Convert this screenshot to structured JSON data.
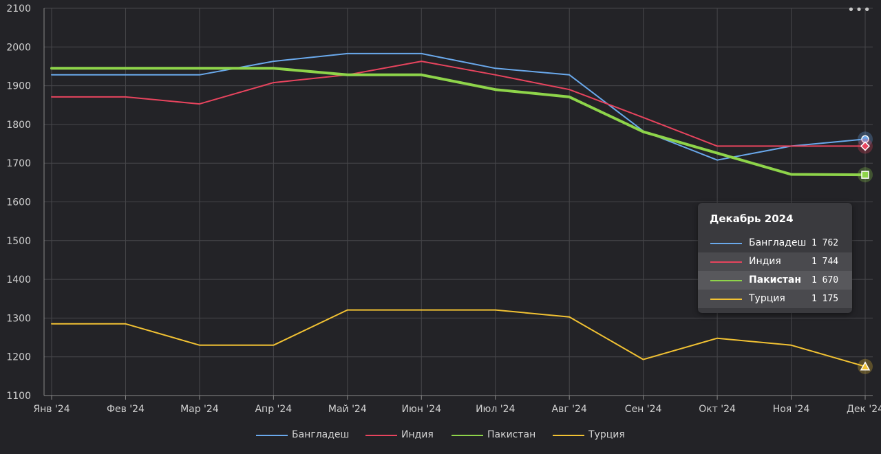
{
  "chart_data": {
    "type": "line",
    "title": "",
    "xlabel": "",
    "ylabel": "",
    "categories": [
      "Янв '24",
      "Фев '24",
      "Мар '24",
      "Апр '24",
      "Май '24",
      "Июн '24",
      "Июл '24",
      "Авг '24",
      "Сен '24",
      "Окт '24",
      "Ноя '24",
      "Дек '24"
    ],
    "ylim": [
      1100,
      2100
    ],
    "yticks": [
      "1100",
      "1200",
      "1300",
      "1400",
      "1500",
      "1600",
      "1700",
      "1800",
      "1900",
      "2000",
      "2100"
    ],
    "grid": true,
    "legend_position": "bottom",
    "series": [
      {
        "name": "Бангладеш",
        "color": "#6aa9ec",
        "marker": "circle",
        "values": [
          1928,
          1928,
          1928,
          1963,
          1983,
          1983,
          1945,
          1928,
          1783,
          1708,
          1744,
          1762
        ]
      },
      {
        "name": "Индия",
        "color": "#e8445e",
        "marker": "diamond",
        "values": [
          1871,
          1871,
          1853,
          1908,
          1928,
          1963,
          1928,
          1890,
          1818,
          1744,
          1744,
          1744
        ]
      },
      {
        "name": "Пакистан",
        "color": "#8ed44a",
        "marker": "square",
        "emphasized": true,
        "values": [
          1945,
          1945,
          1945,
          1945,
          1928,
          1928,
          1890,
          1871,
          1781,
          1726,
          1671,
          1670
        ]
      },
      {
        "name": "Турция",
        "color": "#f2c233",
        "marker": "triangle",
        "values": [
          1285,
          1285,
          1230,
          1230,
          1321,
          1321,
          1321,
          1303,
          1193,
          1248,
          1230,
          1175
        ]
      }
    ]
  },
  "tooltip": {
    "title": "Декабрь 2024",
    "rows": [
      {
        "name": "Бангладеш",
        "value": "1 762",
        "color": "#6aa9ec"
      },
      {
        "name": "Индия",
        "value": "1 744",
        "color": "#e8445e"
      },
      {
        "name": "Пакистан",
        "value": "1 670",
        "color": "#8ed44a"
      },
      {
        "name": "Турция",
        "value": "1 175",
        "color": "#f2c233"
      }
    ]
  },
  "menu_icon": "more-horizontal-icon",
  "menu_label": "•••"
}
